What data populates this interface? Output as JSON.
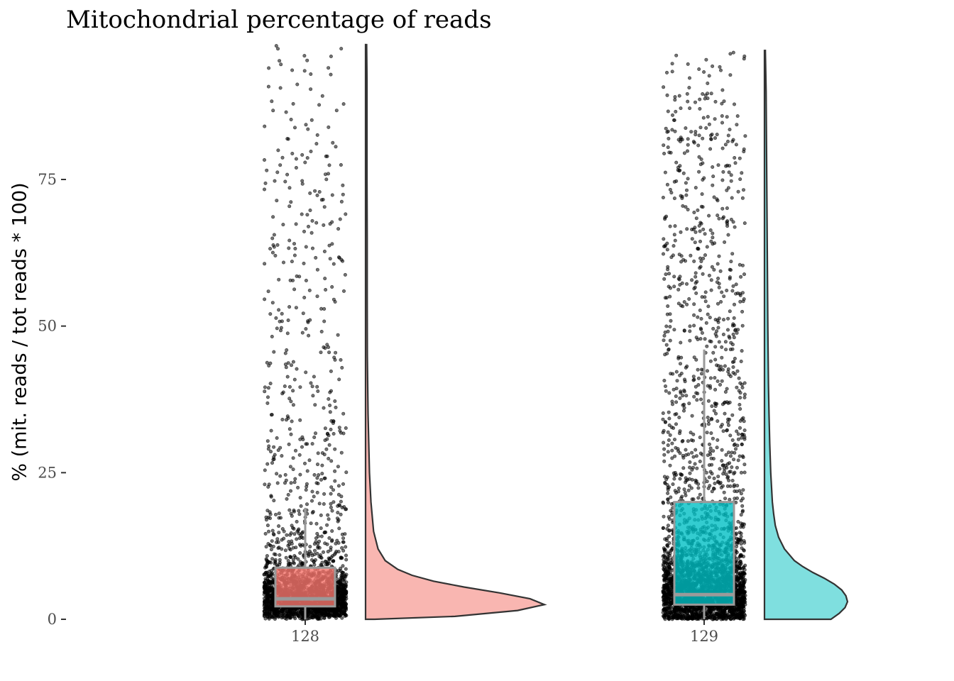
{
  "chart_data": {
    "type": "raincloud",
    "title": "Mitochondrial percentage of reads",
    "xlabel": "",
    "ylabel": "% (mit. reads / tot reads * 100)",
    "ylim": [
      0,
      98
    ],
    "y_ticks": [
      0,
      25,
      50,
      75
    ],
    "grid": false,
    "legend": "none",
    "categories": [
      "128",
      "129"
    ],
    "series": [
      {
        "category": "128",
        "color": "#f8766d",
        "box": {
          "whisker_low": 0,
          "q1": 2.2,
          "median": 3.5,
          "q3": 8.8,
          "whisker_high": 19
        },
        "density": [
          [
            0,
            0.05
          ],
          [
            0.5,
            0.5
          ],
          [
            1.5,
            0.85
          ],
          [
            2.5,
            1.0
          ],
          [
            3.5,
            0.92
          ],
          [
            4.5,
            0.75
          ],
          [
            5.5,
            0.55
          ],
          [
            6.5,
            0.38
          ],
          [
            7.5,
            0.26
          ],
          [
            8.5,
            0.18
          ],
          [
            10,
            0.11
          ],
          [
            12,
            0.07
          ],
          [
            15,
            0.045
          ],
          [
            20,
            0.03
          ],
          [
            25,
            0.022
          ],
          [
            35,
            0.014
          ],
          [
            45,
            0.01
          ],
          [
            55,
            0.009
          ],
          [
            65,
            0.009
          ],
          [
            75,
            0.008
          ],
          [
            85,
            0.008
          ],
          [
            92,
            0.008
          ],
          [
            98,
            0.006
          ]
        ]
      },
      {
        "category": "129",
        "color": "#00bfc4",
        "box": {
          "whisker_low": 0,
          "q1": 2.5,
          "median": 4.2,
          "q3": 20,
          "whisker_high": 46
        },
        "density": [
          [
            0,
            0.8
          ],
          [
            1,
            0.9
          ],
          [
            2,
            0.97
          ],
          [
            3,
            1.0
          ],
          [
            4,
            0.98
          ],
          [
            5,
            0.93
          ],
          [
            6,
            0.84
          ],
          [
            7,
            0.72
          ],
          [
            8,
            0.58
          ],
          [
            9,
            0.46
          ],
          [
            10,
            0.36
          ],
          [
            12,
            0.24
          ],
          [
            14,
            0.17
          ],
          [
            16,
            0.13
          ],
          [
            18,
            0.11
          ],
          [
            20,
            0.095
          ],
          [
            25,
            0.075
          ],
          [
            30,
            0.063
          ],
          [
            35,
            0.055
          ],
          [
            40,
            0.048
          ],
          [
            50,
            0.04
          ],
          [
            60,
            0.035
          ],
          [
            70,
            0.03
          ],
          [
            80,
            0.025
          ],
          [
            90,
            0.02
          ],
          [
            97,
            0.01
          ]
        ]
      }
    ]
  }
}
